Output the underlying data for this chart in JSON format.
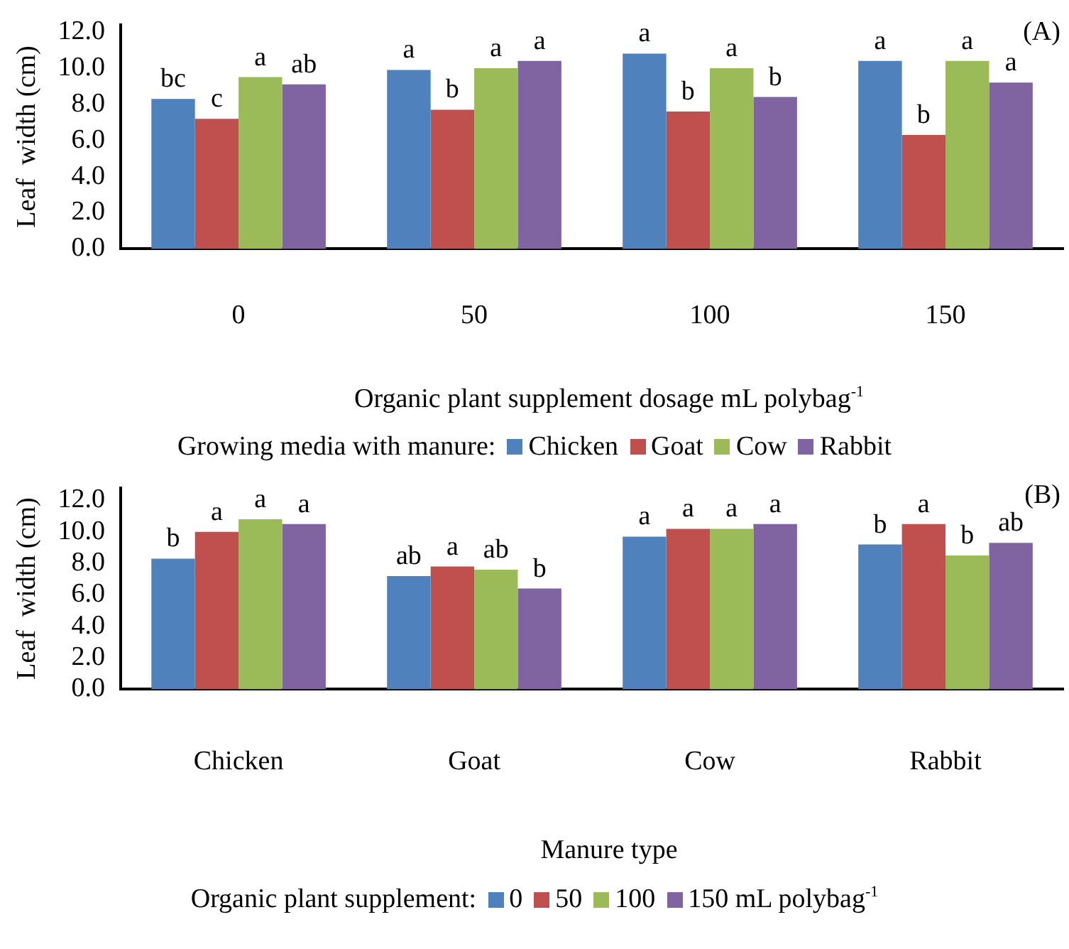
{
  "chart_data": [
    {
      "type": "bar",
      "xlabel": "Organic plant supplement dosage mL polybag$^{-1}$",
      "ylabel": "Leaf  width (cm)",
      "legend_title": "Growing media with manure:",
      "legend": "bottom",
      "grid": false,
      "categories": [
        "0",
        "50",
        "100",
        "150"
      ],
      "series": [
        {
          "name": "Chicken",
          "color": "#4f81bd",
          "values": [
            8.3,
            9.9,
            10.8,
            10.4
          ],
          "value_labels": [
            "bc",
            "a",
            "a",
            "a"
          ]
        },
        {
          "name": "Goat",
          "color": "#c0504d",
          "values": [
            7.2,
            7.7,
            7.6,
            6.3
          ],
          "value_labels": [
            "c",
            "b",
            "b",
            "b"
          ]
        },
        {
          "name": "Cow",
          "color": "#9bbb59",
          "values": [
            9.5,
            10.0,
            10.0,
            10.4
          ],
          "value_labels": [
            "a",
            "a",
            "a",
            "a"
          ]
        },
        {
          "name": "Rabbit",
          "color": "#8064a2",
          "values": [
            9.1,
            10.4,
            8.4,
            9.2
          ],
          "value_labels": [
            "ab",
            "a",
            "b",
            "a"
          ]
        }
      ],
      "ylim": [
        0,
        12.4
      ],
      "yticks": [
        {
          "value": 0,
          "label": "0.0"
        },
        {
          "value": 2,
          "label": "2.0"
        },
        {
          "value": 4,
          "label": "4.0"
        },
        {
          "value": 6,
          "label": "6.0"
        },
        {
          "value": 8,
          "label": "8.0"
        },
        {
          "value": 10,
          "label": "10.0"
        },
        {
          "value": 12,
          "label": "12.0"
        }
      ],
      "annotations": [
        "(A)"
      ]
    },
    {
      "type": "bar",
      "xlabel": "Manure type",
      "ylabel": "Leaf  width (cm)",
      "legend_title": "Organic plant supplement:",
      "legend": "bottom",
      "grid": false,
      "categories": [
        "Chicken",
        "Goat",
        "Cow",
        "Rabbit"
      ],
      "series": [
        {
          "name": "0",
          "color": "#4f81bd",
          "values": [
            8.3,
            7.2,
            9.7,
            9.2
          ],
          "value_labels": [
            "b",
            "ab",
            "a",
            "b"
          ]
        },
        {
          "name": "50",
          "color": "#c0504d",
          "values": [
            10.0,
            7.8,
            10.2,
            10.5
          ],
          "value_labels": [
            "a",
            "a",
            "a",
            "a"
          ]
        },
        {
          "name": "100",
          "color": "#9bbb59",
          "values": [
            10.8,
            7.6,
            10.2,
            8.5
          ],
          "value_labels": [
            "a",
            "ab",
            "a",
            "b"
          ]
        },
        {
          "name": "150 mL polybag$^{-1}$",
          "color": "#8064a2",
          "values": [
            10.5,
            6.4,
            10.5,
            9.3
          ],
          "value_labels": [
            "a",
            "b",
            "a",
            "ab"
          ]
        }
      ],
      "ylim": [
        0,
        12.8
      ],
      "yticks": [
        {
          "value": 0,
          "label": "0.0"
        },
        {
          "value": 2,
          "label": "2.0"
        },
        {
          "value": 4,
          "label": "4.0"
        },
        {
          "value": 6,
          "label": "6.0"
        },
        {
          "value": 8,
          "label": "8.0"
        },
        {
          "value": 10,
          "label": "10.0"
        },
        {
          "value": 12,
          "label": "12.0"
        }
      ],
      "annotations": [
        "(B)"
      ]
    }
  ]
}
